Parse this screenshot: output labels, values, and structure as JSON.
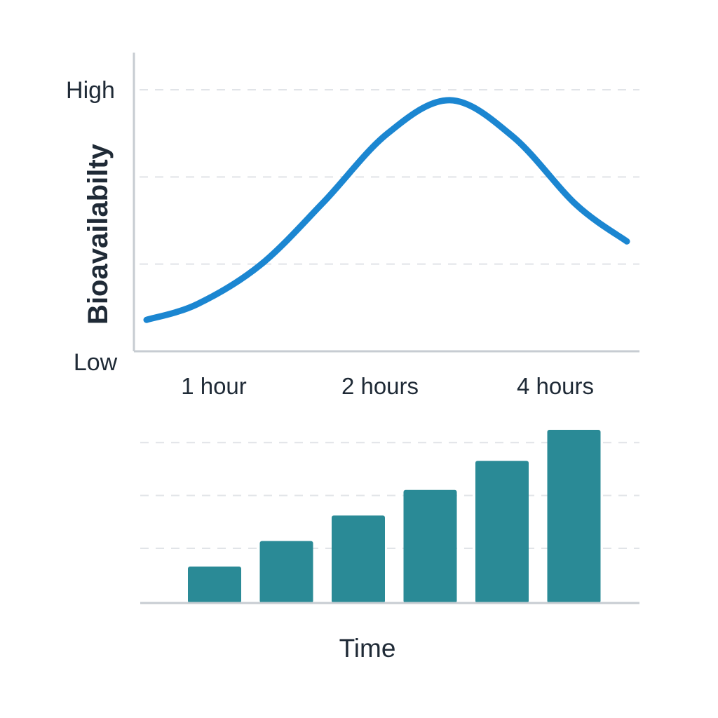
{
  "chart_data": [
    {
      "type": "line",
      "ylabel": "Bioavailabilty",
      "ytick_labels": [
        "High",
        "Low"
      ],
      "xtick_labels": [
        "1 hour",
        "2 hours",
        "4 hours"
      ],
      "ylim": [
        0,
        1
      ],
      "xlim": [
        0.5,
        4.5
      ],
      "grid": true,
      "line_color": "#1b86d1",
      "x": [
        0.6,
        1.0,
        1.5,
        2.0,
        2.5,
        3.0,
        3.5,
        4.0,
        4.4
      ],
      "values": [
        0.12,
        0.18,
        0.33,
        0.57,
        0.83,
        0.96,
        0.82,
        0.56,
        0.42
      ]
    },
    {
      "type": "bar",
      "xlabel": "Time",
      "categories": [
        "",
        "",
        "",
        "",
        "",
        ""
      ],
      "values": [
        2.0,
        3.4,
        4.8,
        6.2,
        7.8,
        9.5
      ],
      "ylim": [
        0,
        10
      ],
      "grid": true,
      "bar_color": "#2a8a96"
    }
  ]
}
